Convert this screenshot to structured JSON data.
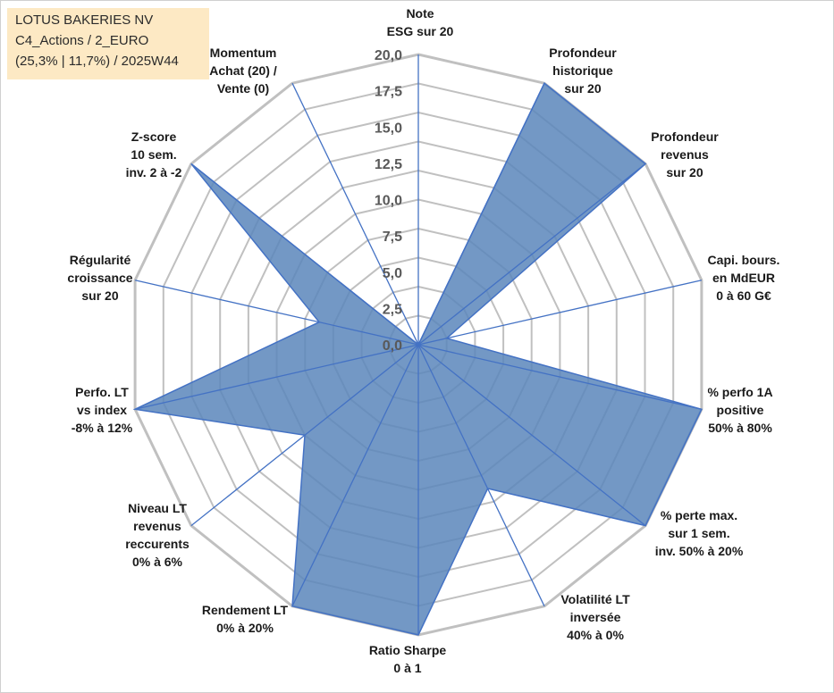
{
  "title_box": {
    "line1": "LOTUS BAKERIES NV",
    "line2": "C4_Actions / 2_EURO",
    "line3": "(25,3% | 11,7%) / 2025W44",
    "background": "#fde9c4"
  },
  "chart_data": {
    "type": "radar",
    "r_min": 0,
    "r_max": 20,
    "r_ticks": [
      "0,0",
      "2,5",
      "5,0",
      "7,5",
      "10,0",
      "12,5",
      "15,0",
      "17,5",
      "20,0"
    ],
    "r_tick_values": [
      0,
      2.5,
      5,
      7.5,
      10,
      12.5,
      15,
      17.5,
      20
    ],
    "grid_rings": 10,
    "axes": [
      {
        "label": [
          "Note",
          "ESG sur 20"
        ],
        "value": 0
      },
      {
        "label": [
          "Profondeur",
          "historique",
          "sur 20"
        ],
        "value": 20
      },
      {
        "label": [
          "Profondeur",
          "revenus",
          "sur 20"
        ],
        "value": 20
      },
      {
        "label": [
          "Capi. bours.",
          "en MdEUR",
          "0 à 60 G€"
        ],
        "value": 2
      },
      {
        "label": [
          "% perfo 1A",
          "positive",
          "50% à 80%"
        ],
        "value": 20
      },
      {
        "label": [
          "% perte max.",
          "sur 1 sem.",
          "inv. 50% à 20%"
        ],
        "value": 20
      },
      {
        "label": [
          "Volatilité LT",
          "inversée",
          "40% à 0%"
        ],
        "value": 11
      },
      {
        "label": [
          "Ratio Sharpe",
          "0 à 1"
        ],
        "value": 20
      },
      {
        "label": [
          "Rendement LT",
          "0% à 20%"
        ],
        "value": 20
      },
      {
        "label": [
          "Niveau LT",
          "revenus",
          "reccurents",
          "0% à 6%"
        ],
        "value": 10
      },
      {
        "label": [
          "Perfo. LT",
          "vs index",
          "-8% à 12%"
        ],
        "value": 20
      },
      {
        "label": [
          "Régularité",
          "croissance",
          "sur 20"
        ],
        "value": 7
      },
      {
        "label": [
          "Z-score",
          "10 sem.",
          "inv. 2 à -2"
        ],
        "value": 20
      },
      {
        "label": [
          "Momentum",
          "Achat (20) /",
          "Vente (0)"
        ],
        "value": 0
      }
    ],
    "series_name": "LOTUS BAKERIES NV",
    "fill_color": "#5b86bb",
    "line_color": "#4472c4",
    "grid_color": "#c0c0c0"
  }
}
